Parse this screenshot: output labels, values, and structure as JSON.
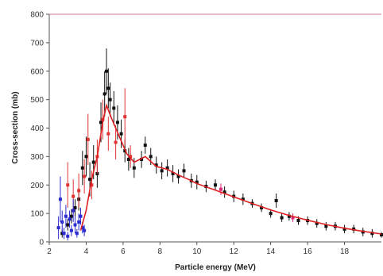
{
  "chart_data": {
    "type": "scatter",
    "xlabel": "Particle energy (MeV)",
    "ylabel": "Cross-section (mb)",
    "xlim": [
      2,
      20
    ],
    "ylim": [
      0,
      800
    ],
    "x_ticks": [
      "2",
      "4",
      "6",
      "8",
      "10",
      "12",
      "14",
      "16",
      "18"
    ],
    "x_tick_values": [
      2,
      4,
      6,
      8,
      10,
      12,
      14,
      16,
      18
    ],
    "y_ticks": [
      "0",
      "100",
      "200",
      "300",
      "400",
      "500",
      "600",
      "700",
      "800"
    ],
    "y_tick_values": [
      0,
      100,
      200,
      300,
      400,
      500,
      600,
      700,
      800
    ],
    "grid": false,
    "legend": "none",
    "colors": {
      "black_series": "#111111",
      "red_series": "#e23333",
      "blue_series": "#2b2bd0",
      "magenta_series": "#d8287a",
      "fit_curve": "#e02020",
      "top_frame": "#c77b8e"
    },
    "series": [
      {
        "color_key": "black_series",
        "points": [
          [
            2.7,
            30,
            15
          ],
          [
            3.0,
            60,
            20
          ],
          [
            3.2,
            90,
            25
          ],
          [
            3.4,
            120,
            30
          ],
          [
            3.6,
            150,
            40
          ],
          [
            3.8,
            260,
            60
          ],
          [
            4.0,
            300,
            70
          ],
          [
            4.2,
            220,
            60
          ],
          [
            4.4,
            280,
            60
          ],
          [
            4.6,
            240,
            50
          ],
          [
            4.8,
            420,
            70
          ],
          [
            5.0,
            520,
            80
          ],
          [
            5.1,
            600,
            80
          ],
          [
            5.2,
            540,
            70
          ],
          [
            5.3,
            500,
            60
          ],
          [
            5.5,
            470,
            60
          ],
          [
            5.7,
            420,
            60
          ],
          [
            5.9,
            380,
            50
          ],
          [
            6.1,
            320,
            40
          ],
          [
            6.3,
            290,
            40
          ],
          [
            6.6,
            260,
            35
          ],
          [
            7.0,
            290,
            30
          ],
          [
            7.2,
            340,
            30
          ],
          [
            7.5,
            300,
            30
          ],
          [
            7.8,
            270,
            30
          ],
          [
            8.1,
            250,
            30
          ],
          [
            8.4,
            260,
            30
          ],
          [
            8.7,
            240,
            30
          ],
          [
            9.0,
            230,
            25
          ],
          [
            9.3,
            250,
            25
          ],
          [
            9.7,
            215,
            25
          ],
          [
            10.0,
            210,
            25
          ],
          [
            10.5,
            195,
            20
          ],
          [
            11.0,
            200,
            20
          ],
          [
            11.5,
            175,
            20
          ],
          [
            12.0,
            160,
            20
          ],
          [
            12.5,
            150,
            20
          ],
          [
            13.0,
            135,
            15
          ],
          [
            13.5,
            120,
            15
          ],
          [
            14.0,
            100,
            15
          ],
          [
            14.3,
            145,
            25
          ],
          [
            14.6,
            85,
            15
          ],
          [
            15.0,
            90,
            15
          ],
          [
            15.5,
            75,
            15
          ],
          [
            16.0,
            75,
            15
          ],
          [
            16.5,
            65,
            15
          ],
          [
            17.0,
            55,
            15
          ],
          [
            17.5,
            55,
            15
          ],
          [
            18.0,
            45,
            15
          ],
          [
            18.5,
            45,
            15
          ],
          [
            19.0,
            35,
            15
          ],
          [
            19.5,
            30,
            15
          ],
          [
            20.0,
            25,
            10
          ]
        ]
      },
      {
        "color_key": "red_series",
        "points": [
          [
            3.0,
            200,
            80
          ],
          [
            3.3,
            160,
            60
          ],
          [
            3.6,
            180,
            60
          ],
          [
            3.9,
            230,
            60
          ],
          [
            4.1,
            360,
            90
          ],
          [
            4.3,
            200,
            50
          ],
          [
            4.6,
            300,
            60
          ],
          [
            4.9,
            430,
            70
          ],
          [
            5.2,
            380,
            60
          ],
          [
            5.6,
            350,
            60
          ],
          [
            6.1,
            440,
            100
          ],
          [
            6.4,
            300,
            40
          ]
        ]
      },
      {
        "color_key": "blue_series",
        "points": [
          [
            2.5,
            50,
            40
          ],
          [
            2.6,
            150,
            80
          ],
          [
            2.7,
            70,
            40
          ],
          [
            2.8,
            30,
            20
          ],
          [
            2.9,
            90,
            40
          ],
          [
            3.0,
            20,
            15
          ],
          [
            3.1,
            80,
            30
          ],
          [
            3.2,
            40,
            20
          ],
          [
            3.3,
            110,
            40
          ],
          [
            3.4,
            60,
            30
          ],
          [
            3.5,
            30,
            15
          ],
          [
            3.6,
            70,
            30
          ],
          [
            3.7,
            90,
            30
          ],
          [
            3.8,
            50,
            20
          ],
          [
            3.9,
            40,
            20
          ]
        ]
      },
      {
        "color_key": "magenta_series",
        "points": [
          [
            11.3,
            185,
            20
          ],
          [
            15.2,
            85,
            15
          ]
        ]
      }
    ],
    "fit_curve": {
      "color_key": "fit_curve",
      "points": [
        [
          3.7,
          40
        ],
        [
          4.0,
          110
        ],
        [
          4.3,
          220
        ],
        [
          4.6,
          300
        ],
        [
          4.9,
          420
        ],
        [
          5.1,
          480
        ],
        [
          5.4,
          430
        ],
        [
          5.8,
          370
        ],
        [
          6.2,
          310
        ],
        [
          6.6,
          280
        ],
        [
          7.2,
          300
        ],
        [
          7.8,
          265
        ],
        [
          8.4,
          255
        ],
        [
          9.0,
          235
        ],
        [
          9.6,
          218
        ],
        [
          10.0,
          205
        ],
        [
          11.0,
          182
        ],
        [
          12.0,
          158
        ],
        [
          13.0,
          135
        ],
        [
          14.0,
          112
        ],
        [
          15.0,
          93
        ],
        [
          16.0,
          76
        ],
        [
          17.0,
          61
        ],
        [
          18.0,
          48
        ],
        [
          19.0,
          37
        ],
        [
          20.0,
          28
        ]
      ]
    }
  }
}
